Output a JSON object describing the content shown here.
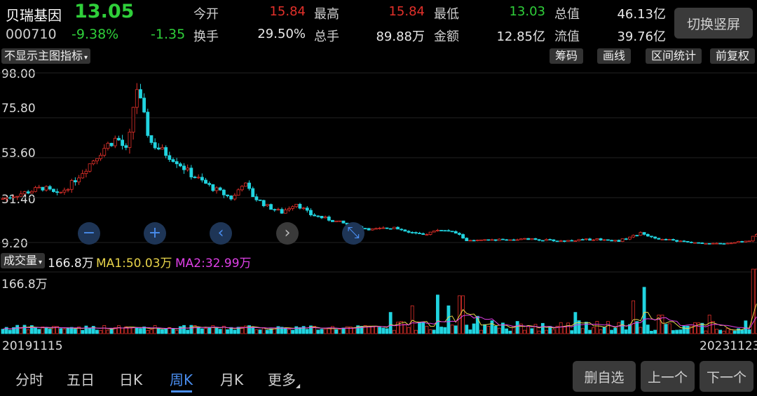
{
  "header": {
    "name": "贝瑞基因",
    "price": "13.05",
    "code": "000710",
    "change_pct": "-9.38%",
    "change": "-1.35",
    "switch_label": "切换竖屏",
    "quotes": [
      {
        "label": "今开",
        "value": "15.84",
        "color": "#e2302a"
      },
      {
        "label": "最高",
        "value": "15.84",
        "color": "#e2302a"
      },
      {
        "label": "最低",
        "value": "13.03",
        "color": "#2fcf3a"
      },
      {
        "label": "总值",
        "value": "46.13亿",
        "color": "#e8e8e8"
      },
      {
        "label": "换手",
        "value": "29.50%",
        "color": "#e8e8e8"
      },
      {
        "label": "总手",
        "value": "89.88万",
        "color": "#e8e8e8"
      },
      {
        "label": "金额",
        "value": "12.85亿",
        "color": "#e8e8e8"
      },
      {
        "label": "流值",
        "value": "39.76亿",
        "color": "#e8e8e8"
      }
    ]
  },
  "toolbar": {
    "indicator": "不显示主图指标",
    "buttons": [
      "筹码",
      "画线",
      "区间统计",
      "前复权"
    ]
  },
  "chart_data": {
    "type": "candlestick",
    "y_ticks": [
      "98.00",
      "75.80",
      "53.60",
      "31.40",
      "9.20"
    ],
    "ylim": [
      9.2,
      98.0
    ],
    "x_start": "20191115",
    "x_end": "20231123",
    "key_points": [
      {
        "t": 0,
        "p": 32
      },
      {
        "t": 30,
        "p": 35
      },
      {
        "t": 60,
        "p": 38
      },
      {
        "t": 80,
        "p": 34
      },
      {
        "t": 100,
        "p": 40
      },
      {
        "t": 125,
        "p": 50
      },
      {
        "t": 150,
        "p": 60
      },
      {
        "t": 165,
        "p": 64
      },
      {
        "t": 180,
        "p": 56
      },
      {
        "t": 192,
        "p": 92
      },
      {
        "t": 200,
        "p": 80
      },
      {
        "t": 212,
        "p": 62
      },
      {
        "t": 230,
        "p": 57
      },
      {
        "t": 250,
        "p": 52
      },
      {
        "t": 270,
        "p": 45
      },
      {
        "t": 300,
        "p": 38
      },
      {
        "t": 330,
        "p": 32
      },
      {
        "t": 345,
        "p": 41
      },
      {
        "t": 360,
        "p": 33
      },
      {
        "t": 380,
        "p": 28
      },
      {
        "t": 400,
        "p": 25
      },
      {
        "t": 420,
        "p": 30
      },
      {
        "t": 440,
        "p": 24
      },
      {
        "t": 470,
        "p": 21
      },
      {
        "t": 500,
        "p": 18
      },
      {
        "t": 530,
        "p": 16
      },
      {
        "t": 560,
        "p": 17
      },
      {
        "t": 600,
        "p": 13
      },
      {
        "t": 625,
        "p": 16
      },
      {
        "t": 650,
        "p": 14
      },
      {
        "t": 665,
        "p": 10
      },
      {
        "t": 700,
        "p": 10.5
      },
      {
        "t": 750,
        "p": 11
      },
      {
        "t": 800,
        "p": 10
      },
      {
        "t": 850,
        "p": 11
      },
      {
        "t": 880,
        "p": 10
      },
      {
        "t": 912,
        "p": 14
      },
      {
        "t": 940,
        "p": 11
      },
      {
        "t": 1000,
        "p": 8.5
      },
      {
        "t": 1040,
        "p": 9
      },
      {
        "t": 1068,
        "p": 10
      },
      {
        "t": 1074,
        "p": 14
      },
      {
        "t": 1076,
        "p": 13
      }
    ],
    "volume": {
      "label": "成交量",
      "value": "166.8万",
      "ma1": "MA1:50.03万",
      "ma2": "MA2:32.99万",
      "axis_max": "166.8万",
      "max": 166.8,
      "spikes": [
        {
          "t": 624,
          "v": 100
        },
        {
          "t": 656,
          "v": 98
        },
        {
          "t": 640,
          "v": 72
        },
        {
          "t": 586,
          "v": 72
        },
        {
          "t": 916,
          "v": 120
        },
        {
          "t": 902,
          "v": 85
        },
        {
          "t": 1075,
          "v": 166.8
        },
        {
          "t": 1012,
          "v": 48
        },
        {
          "t": 557,
          "v": 55
        },
        {
          "t": 820,
          "v": 55
        },
        {
          "t": 940,
          "v": 48
        },
        {
          "t": 680,
          "v": 45
        }
      ]
    }
  },
  "controls": [
    {
      "name": "zoom-out-button",
      "glyph": "−",
      "bg": "#1e3556",
      "fg": "#4a8ef0"
    },
    {
      "name": "zoom-in-button",
      "glyph": "+",
      "bg": "#1e3556",
      "fg": "#4a8ef0"
    },
    {
      "name": "scroll-left-button",
      "glyph": "‹",
      "bg": "#1e3556",
      "fg": "#4a8ef0"
    },
    {
      "name": "scroll-right-button",
      "glyph": "›",
      "bg": "#3a3a3a",
      "fg": "#bbbbbb"
    },
    {
      "name": "reset-zoom-button",
      "glyph": "⤡",
      "bg": "#1e3556",
      "fg": "#4a8ef0"
    }
  ],
  "tabs": [
    "分时",
    "五日",
    "日K",
    "周K",
    "月K",
    "更多"
  ],
  "active_tab": "周K",
  "bottom_buttons": [
    "删自选",
    "上一个",
    "下一个"
  ]
}
